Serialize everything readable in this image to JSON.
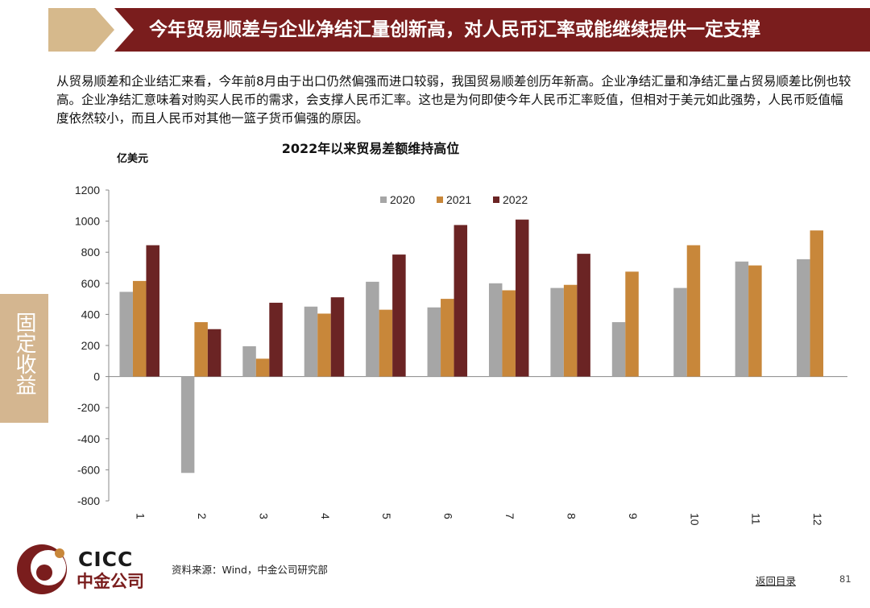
{
  "header": {
    "title": "今年贸易顺差与企业净结汇量创新高，对人民币汇率或能继续提供一定支撑"
  },
  "intro_text": "从贸易顺差和企业结汇来看，今年前8月由于出口仍然偏强而进口较弱，我国贸易顺差创历年新高。企业净结汇量和净结汇量占贸易顺差比例也较高。企业净结汇意味着对购买人民币的需求，会支撑人民币汇率。这也是为何即使今年人民币汇率贬值，但相对于美元如此强势，人民币贬值幅度依然较小，而且人民币对其他一篮子货币偏强的原因。",
  "side_tab": "固定收益",
  "chart_data": {
    "type": "bar",
    "title": "2022年以来贸易差额维持高位",
    "ylabel": "亿美元",
    "xlabel": "",
    "ylim": [
      -800,
      1200
    ],
    "yticks": [
      1200,
      1000,
      800,
      600,
      400,
      200,
      0,
      -200,
      -400,
      -600,
      -800
    ],
    "categories": [
      "1",
      "2",
      "3",
      "4",
      "5",
      "6",
      "7",
      "8",
      "9",
      "10",
      "11",
      "12"
    ],
    "legend_position": "top-center",
    "series": [
      {
        "name": "2020",
        "color": "#a6a6a6",
        "values": [
          545,
          -620,
          195,
          450,
          610,
          445,
          600,
          570,
          350,
          570,
          740,
          755
        ]
      },
      {
        "name": "2021",
        "color": "#c8873a",
        "values": [
          615,
          350,
          115,
          405,
          430,
          500,
          555,
          590,
          675,
          845,
          715,
          940
        ]
      },
      {
        "name": "2022",
        "color": "#6b2424",
        "values": [
          845,
          305,
          475,
          510,
          785,
          975,
          1010,
          790,
          null,
          null,
          null,
          null
        ]
      }
    ]
  },
  "footer": {
    "logo_en": "CICC",
    "logo_cn": "中金公司",
    "source": "资料来源：Wind，中金公司研究部",
    "back_link": "返回目录",
    "page_number": "81"
  },
  "colors": {
    "banner_red": "#7a1d1d",
    "banner_tan": "#d6b98c",
    "side_tab": "#d4b690",
    "logo_red": "#7a1d1d"
  }
}
